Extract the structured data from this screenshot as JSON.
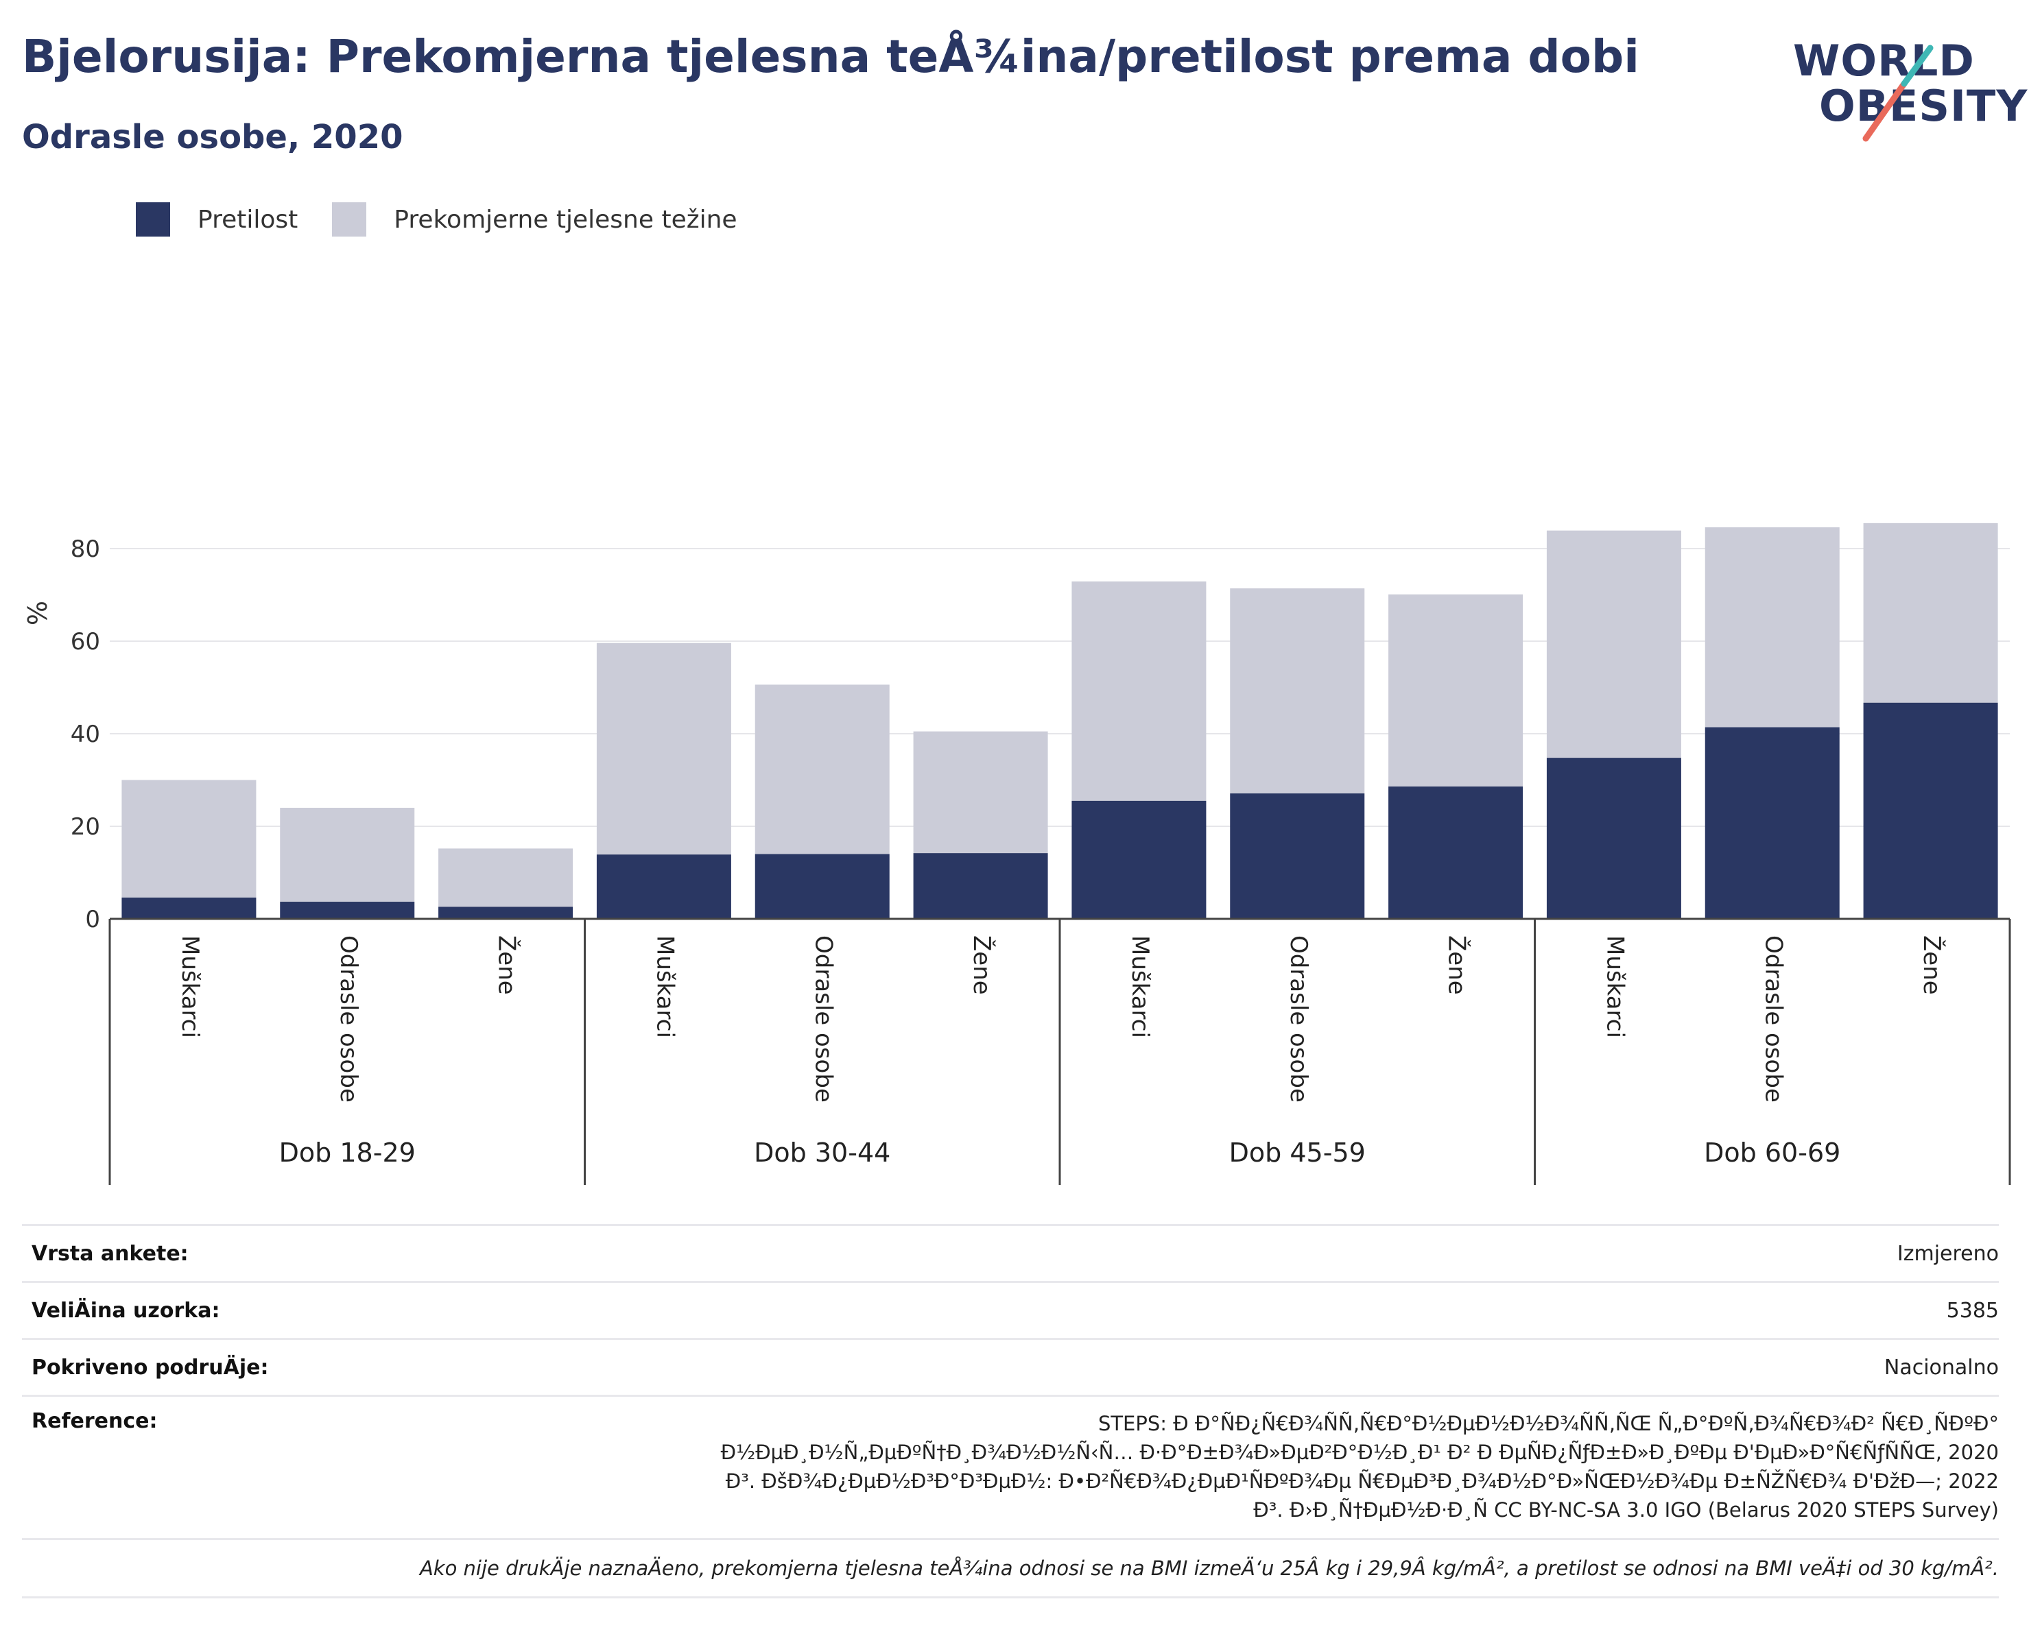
{
  "header": {
    "title": "Bjelorusija: Prekomjerna tjelesna teÅ¾ina/pretilost prema dobi",
    "subtitle": "Odrasle osobe, 2020"
  },
  "logo": {
    "line1": "WORLD",
    "line2": "OBESITY"
  },
  "legend": [
    {
      "label": "Pretilost",
      "color": "#2a3763"
    },
    {
      "label": "Prekomjerne tjelesne težine",
      "color": "#cbccd8"
    }
  ],
  "chart_data": {
    "type": "bar",
    "stacked": true,
    "ylabel": "%",
    "ylim": [
      0,
      90
    ],
    "yticks": [
      0,
      20,
      40,
      60,
      80
    ],
    "grid": true,
    "legend_position": "top-left",
    "groups": [
      {
        "label": "Dob 18-29",
        "categories": [
          "Muškarci",
          "Odrasle osobe",
          "Žene"
        ]
      },
      {
        "label": "Dob 30-44",
        "categories": [
          "Muškarci",
          "Odrasle osobe",
          "Žene"
        ]
      },
      {
        "label": "Dob 45-59",
        "categories": [
          "Muškarci",
          "Odrasle osobe",
          "Žene"
        ]
      },
      {
        "label": "Dob 60-69",
        "categories": [
          "Muškarci",
          "Odrasle osobe",
          "Žene"
        ]
      }
    ],
    "series": [
      {
        "name": "Pretilost",
        "color": "#2a3763",
        "values": [
          4.6,
          3.7,
          2.6,
          13.9,
          14.0,
          14.2,
          25.5,
          27.1,
          28.6,
          34.8,
          41.4,
          46.7
        ]
      },
      {
        "name": "Prekomjerne tjelesne težine",
        "color": "#cbccd8",
        "values": [
          25.4,
          20.3,
          12.6,
          45.7,
          36.6,
          26.3,
          47.4,
          44.3,
          41.5,
          49.1,
          43.2,
          38.8
        ]
      }
    ]
  },
  "meta": {
    "survey_type": {
      "label": "Vrsta ankete:",
      "value": "Izmjereno"
    },
    "sample_size": {
      "label": "VeliÄ\u001fina uzorka:",
      "value": "5385"
    },
    "coverage": {
      "label": "Pokriveno podruÄ\u001fje:",
      "value": "Nacionalno"
    },
    "reference": {
      "label": "Reference:",
      "lines": [
        "STEPS: Ð Ð°Ñ\u001fÐ¿Ñ€Ð¾Ñ\u001fÑ‚Ñ€Ð°Ð½ÐµÐ½Ð½Ð¾Ñ\u001fÑ‚ÑŒ Ñ„Ð°ÐºÑ‚Ð¾Ñ€Ð¾Ð² Ñ€Ð¸Ñ\u001fÐºÐ°",
        "Ð½ÐµÐ¸Ð½Ñ„ÐµÐºÑ†Ð¸Ð¾Ð½Ð½Ñ‹Ñ… Ð·Ð°Ð±Ð¾Ð»ÐµÐ²Ð°Ð½Ð¸Ð¹ Ð² Ð ÐµÑ\u001fÐ¿ÑƒÐ±Ð»Ð¸ÐºÐµ Ð'ÐµÐ»Ð°Ñ€ÑƒÑ\u001fÑŒ, 2020",
        "Ð³. ÐšÐ¾Ð¿ÐµÐ½Ð³Ð°Ð³ÐµÐ½: Ð•Ð²Ñ€Ð¾Ð¿ÐµÐ¹Ñ\u001fÐºÐ¾Ðµ Ñ€ÐµÐ³Ð¸Ð¾Ð½Ð°Ð»ÑŒÐ½Ð¾Ðµ Ð±ÑŽÑ€Ð¾ Ð'ÐžÐ—; 2022",
        "Ð³. Ð›Ð¸Ñ†ÐµÐ½Ð·Ð¸Ñ\u001f CC BY-NC-SA 3.0 IGO (Belarus 2020 STEPS Survey)"
      ]
    },
    "note": "Ako nije drukÄ\u001fje naznaÄ\u001feno, prekomjerna tjelesna teÅ¾ina odnosi se na BMI izmeÄ‘u 25Â kg i 29,9Â kg/mÂ², a pretilost se odnosi na BMI veÄ‡i od 30 kg/mÂ²."
  }
}
